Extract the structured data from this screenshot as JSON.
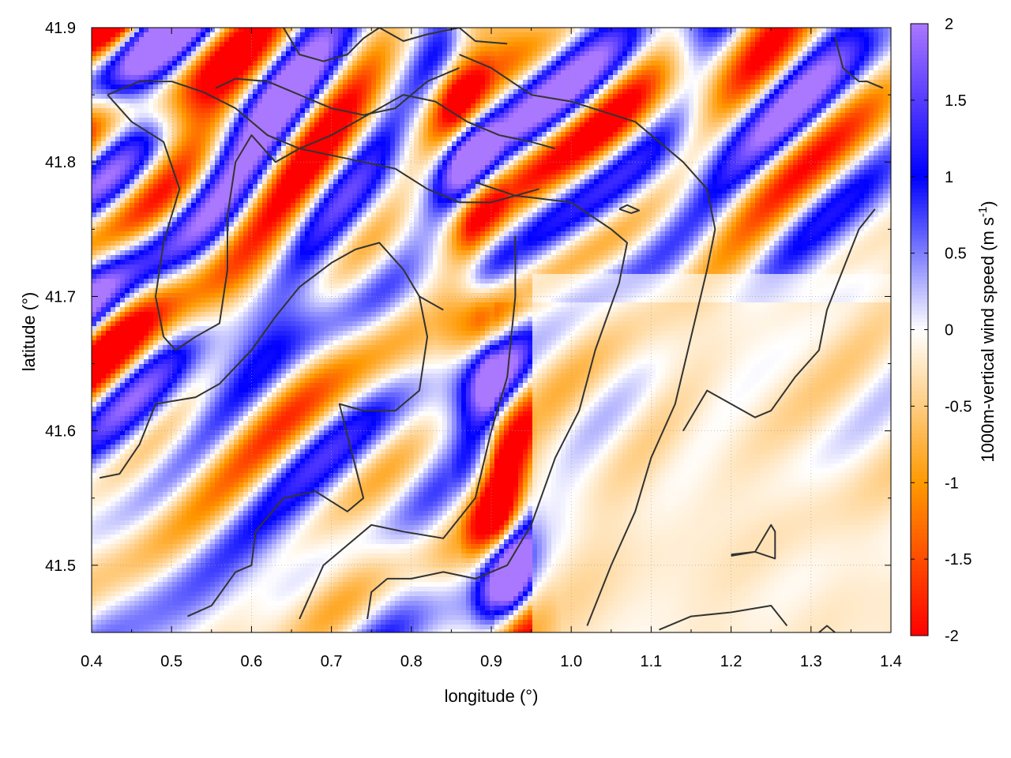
{
  "chart_data": {
    "type": "heatmap",
    "title": "",
    "xlabel": "longitude (°)",
    "ylabel": "latitude (°)",
    "colorbar_label": "1000m-vertical wind speed (m s",
    "colorbar_label_sup": "-1",
    "colorbar_label_close": ")",
    "xlim": [
      0.4,
      1.4
    ],
    "ylim": [
      41.45,
      41.9
    ],
    "xticks": [
      0.4,
      0.5,
      0.6,
      0.7,
      0.8,
      0.9,
      1.0,
      1.1,
      1.2,
      1.3,
      1.4
    ],
    "xtick_labels": [
      "0.4",
      "0.5",
      "0.6",
      "0.7",
      "0.8",
      "0.9",
      "1.0",
      "1.1",
      "1.2",
      "1.3",
      "1.4"
    ],
    "yticks": [
      41.5,
      41.6,
      41.7,
      41.8,
      41.9
    ],
    "ytick_labels": [
      "41.5",
      "41.6",
      "41.7",
      "41.8",
      "41.9"
    ],
    "clim": [
      -2,
      2
    ],
    "cbar_ticks": [
      2,
      1.5,
      1,
      0.5,
      0,
      -0.5,
      -1,
      -1.5,
      -2
    ],
    "cbar_tick_labels": [
      "2",
      "1.5",
      "1",
      "0.5",
      "0",
      "-0.5",
      "-1",
      "-1.5",
      "-2"
    ],
    "colormap": [
      {
        "value": -2,
        "color": "#ff0000"
      },
      {
        "value": -1,
        "color": "#ff9900"
      },
      {
        "value": 0,
        "color": "#ffffff"
      },
      {
        "value": 1,
        "color": "#0000ff"
      },
      {
        "value": 2,
        "color": "#aa77ff"
      }
    ],
    "grid": true,
    "contour_color": "#333333",
    "contour_lines": [
      [
        [
          0.41,
          41.565
        ],
        [
          0.435,
          41.568
        ],
        [
          0.46,
          41.59
        ],
        [
          0.48,
          41.62
        ],
        [
          0.5,
          41.622
        ],
        [
          0.53,
          41.625
        ],
        [
          0.56,
          41.635
        ],
        [
          0.6,
          41.66
        ],
        [
          0.63,
          41.685
        ],
        [
          0.66,
          41.707
        ],
        [
          0.7,
          41.725
        ],
        [
          0.73,
          41.735
        ],
        [
          0.76,
          41.74
        ],
        [
          0.79,
          41.72
        ],
        [
          0.81,
          41.7
        ],
        [
          0.84,
          41.69
        ]
      ],
      [
        [
          0.52,
          41.462
        ],
        [
          0.55,
          41.47
        ],
        [
          0.58,
          41.495
        ],
        [
          0.6,
          41.5
        ],
        [
          0.605,
          41.525
        ],
        [
          0.64,
          41.55
        ],
        [
          0.68,
          41.555
        ],
        [
          0.72,
          41.54
        ],
        [
          0.74,
          41.55
        ],
        [
          0.71,
          41.62
        ],
        [
          0.74,
          41.615
        ],
        [
          0.78,
          41.615
        ],
        [
          0.81,
          41.63
        ],
        [
          0.82,
          41.67
        ],
        [
          0.81,
          41.7
        ]
      ],
      [
        [
          0.66,
          41.46
        ],
        [
          0.69,
          41.5
        ],
        [
          0.72,
          41.515
        ],
        [
          0.75,
          41.53
        ],
        [
          0.79,
          41.525
        ],
        [
          0.84,
          41.52
        ],
        [
          0.88,
          41.55
        ],
        [
          0.9,
          41.6
        ],
        [
          0.92,
          41.64
        ],
        [
          0.93,
          41.7
        ],
        [
          0.93,
          41.745
        ]
      ],
      [
        [
          0.745,
          41.46
        ],
        [
          0.75,
          41.48
        ],
        [
          0.77,
          41.49
        ],
        [
          0.8,
          41.49
        ],
        [
          0.84,
          41.495
        ],
        [
          0.88,
          41.49
        ],
        [
          0.92,
          41.5
        ],
        [
          0.95,
          41.53
        ],
        [
          0.98,
          41.58
        ],
        [
          1.01,
          41.615
        ],
        [
          1.03,
          41.66
        ],
        [
          1.06,
          41.71
        ],
        [
          1.07,
          41.74
        ],
        [
          1.05,
          41.75
        ],
        [
          1.0,
          41.77
        ],
        [
          0.93,
          41.775
        ],
        [
          0.88,
          41.785
        ]
      ],
      [
        [
          1.02,
          41.455
        ],
        [
          1.05,
          41.5
        ],
        [
          1.08,
          41.54
        ],
        [
          1.1,
          41.58
        ],
        [
          1.13,
          41.62
        ],
        [
          1.15,
          41.67
        ],
        [
          1.17,
          41.72
        ],
        [
          1.18,
          41.75
        ],
        [
          1.17,
          41.78
        ],
        [
          1.14,
          41.8
        ],
        [
          1.08,
          41.83
        ],
        [
          1.0,
          41.845
        ],
        [
          0.95,
          41.85
        ],
        [
          0.9,
          41.87
        ],
        [
          0.86,
          41.88
        ]
      ],
      [
        [
          1.11,
          41.452
        ],
        [
          1.15,
          41.462
        ],
        [
          1.2,
          41.465
        ],
        [
          1.25,
          41.47
        ],
        [
          1.27,
          41.455
        ]
      ],
      [
        [
          1.2,
          41.508
        ],
        [
          1.23,
          41.51
        ],
        [
          1.255,
          41.505
        ],
        [
          1.255,
          41.525
        ],
        [
          1.25,
          41.53
        ],
        [
          1.23,
          41.51
        ],
        [
          1.2,
          41.507
        ]
      ],
      [
        [
          1.14,
          41.6
        ],
        [
          1.17,
          41.63
        ],
        [
          1.2,
          41.62
        ],
        [
          1.23,
          41.61
        ],
        [
          1.25,
          41.615
        ],
        [
          1.28,
          41.64
        ],
        [
          1.31,
          41.66
        ],
        [
          1.32,
          41.69
        ],
        [
          1.34,
          41.72
        ],
        [
          1.36,
          41.75
        ],
        [
          1.38,
          41.765
        ]
      ],
      [
        [
          0.42,
          41.85
        ],
        [
          0.46,
          41.86
        ],
        [
          0.5,
          41.86
        ],
        [
          0.54,
          41.852
        ],
        [
          0.58,
          41.84
        ],
        [
          0.62,
          41.82
        ],
        [
          0.66,
          41.81
        ],
        [
          0.7,
          41.805
        ],
        [
          0.74,
          41.8
        ],
        [
          0.78,
          41.795
        ],
        [
          0.82,
          41.78
        ],
        [
          0.86,
          41.77
        ],
        [
          0.9,
          41.77
        ],
        [
          0.96,
          41.78
        ]
      ],
      [
        [
          0.42,
          41.85
        ],
        [
          0.45,
          41.83
        ],
        [
          0.49,
          41.815
        ],
        [
          0.51,
          41.78
        ],
        [
          0.49,
          41.74
        ],
        [
          0.48,
          41.7
        ],
        [
          0.49,
          41.67
        ],
        [
          0.505,
          41.66
        ],
        [
          0.53,
          41.67
        ],
        [
          0.56,
          41.68
        ],
        [
          0.57,
          41.72
        ],
        [
          0.57,
          41.76
        ],
        [
          0.58,
          41.8
        ],
        [
          0.6,
          41.82
        ],
        [
          0.63,
          41.8
        ],
        [
          0.66,
          41.81
        ],
        [
          0.7,
          41.82
        ],
        [
          0.73,
          41.83
        ],
        [
          0.76,
          41.84
        ],
        [
          0.79,
          41.85
        ],
        [
          0.83,
          41.845
        ],
        [
          0.87,
          41.83
        ],
        [
          0.91,
          41.82
        ],
        [
          0.95,
          41.815
        ],
        [
          0.98,
          41.81
        ]
      ],
      [
        [
          0.555,
          41.855
        ],
        [
          0.58,
          41.862
        ],
        [
          0.62,
          41.86
        ],
        [
          0.66,
          41.85
        ],
        [
          0.7,
          41.84
        ],
        [
          0.74,
          41.835
        ],
        [
          0.78,
          41.84
        ],
        [
          0.82,
          41.86
        ],
        [
          0.86,
          41.87
        ]
      ],
      [
        [
          0.64,
          41.9
        ],
        [
          0.66,
          41.88
        ],
        [
          0.69,
          41.875
        ],
        [
          0.72,
          41.88
        ],
        [
          0.74,
          41.892
        ],
        [
          0.76,
          41.9
        ]
      ],
      [
        [
          0.76,
          41.9
        ],
        [
          0.79,
          41.89
        ],
        [
          0.82,
          41.895
        ],
        [
          0.86,
          41.9
        ],
        [
          0.88,
          41.89
        ],
        [
          0.92,
          41.888
        ]
      ],
      [
        [
          1.06,
          41.765
        ],
        [
          1.07,
          41.768
        ],
        [
          1.085,
          41.764
        ],
        [
          1.075,
          41.762
        ],
        [
          1.06,
          41.765
        ]
      ],
      [
        [
          1.33,
          41.893
        ],
        [
          1.34,
          41.87
        ],
        [
          1.36,
          41.86
        ],
        [
          1.37,
          41.86
        ],
        [
          1.39,
          41.855
        ]
      ],
      [
        [
          1.31,
          41.45
        ],
        [
          1.32,
          41.455
        ],
        [
          1.33,
          41.45
        ]
      ]
    ]
  }
}
